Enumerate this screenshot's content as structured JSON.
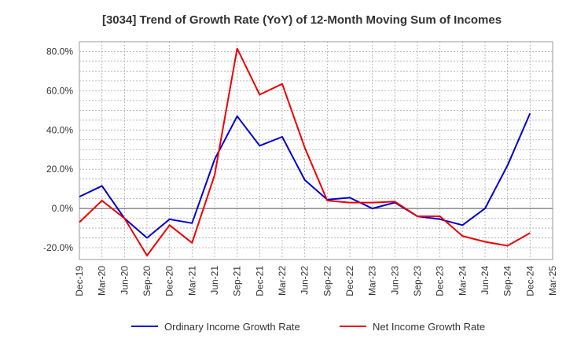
{
  "chart_data": {
    "type": "line",
    "title": "[3034]  Trend of Growth Rate (YoY) of 12-Month Moving Sum of Incomes",
    "xlabel": "",
    "ylabel": "",
    "x": [
      "Dec-19",
      "Mar-20",
      "Jun-20",
      "Sep-20",
      "Dec-20",
      "Mar-21",
      "Jun-21",
      "Sep-21",
      "Dec-21",
      "Mar-22",
      "Jun-22",
      "Sep-22",
      "Dec-22",
      "Mar-23",
      "Jun-23",
      "Sep-23",
      "Dec-23",
      "Mar-24",
      "Jun-24",
      "Sep-24",
      "Dec-24",
      "Mar-25"
    ],
    "y_ticks": [
      "-20.0%",
      "0.0%",
      "20.0%",
      "40.0%",
      "60.0%",
      "80.0%"
    ],
    "y_tick_values": [
      -20,
      0,
      20,
      40,
      60,
      80
    ],
    "ylim": [
      -26,
      85
    ],
    "grid": true,
    "legend_position": "bottom",
    "series": [
      {
        "name": "Ordinary Income Growth Rate",
        "color": "#0000cc",
        "values": [
          6.0,
          11.5,
          -5.0,
          -15.0,
          -5.5,
          -7.5,
          25.0,
          47.0,
          32.0,
          36.5,
          14.5,
          4.5,
          5.5,
          0.0,
          3.0,
          -4.0,
          -5.5,
          -8.5,
          0.0,
          22.0,
          48.5,
          null
        ]
      },
      {
        "name": "Net Income Growth Rate",
        "color": "#ee0000",
        "values": [
          -7.0,
          4.0,
          -5.0,
          -24.0,
          -8.5,
          -17.5,
          17.0,
          81.5,
          58.0,
          63.5,
          31.0,
          4.0,
          3.0,
          3.0,
          3.5,
          -4.0,
          -4.0,
          -14.0,
          -17.0,
          -19.0,
          -12.5,
          null
        ]
      }
    ]
  }
}
